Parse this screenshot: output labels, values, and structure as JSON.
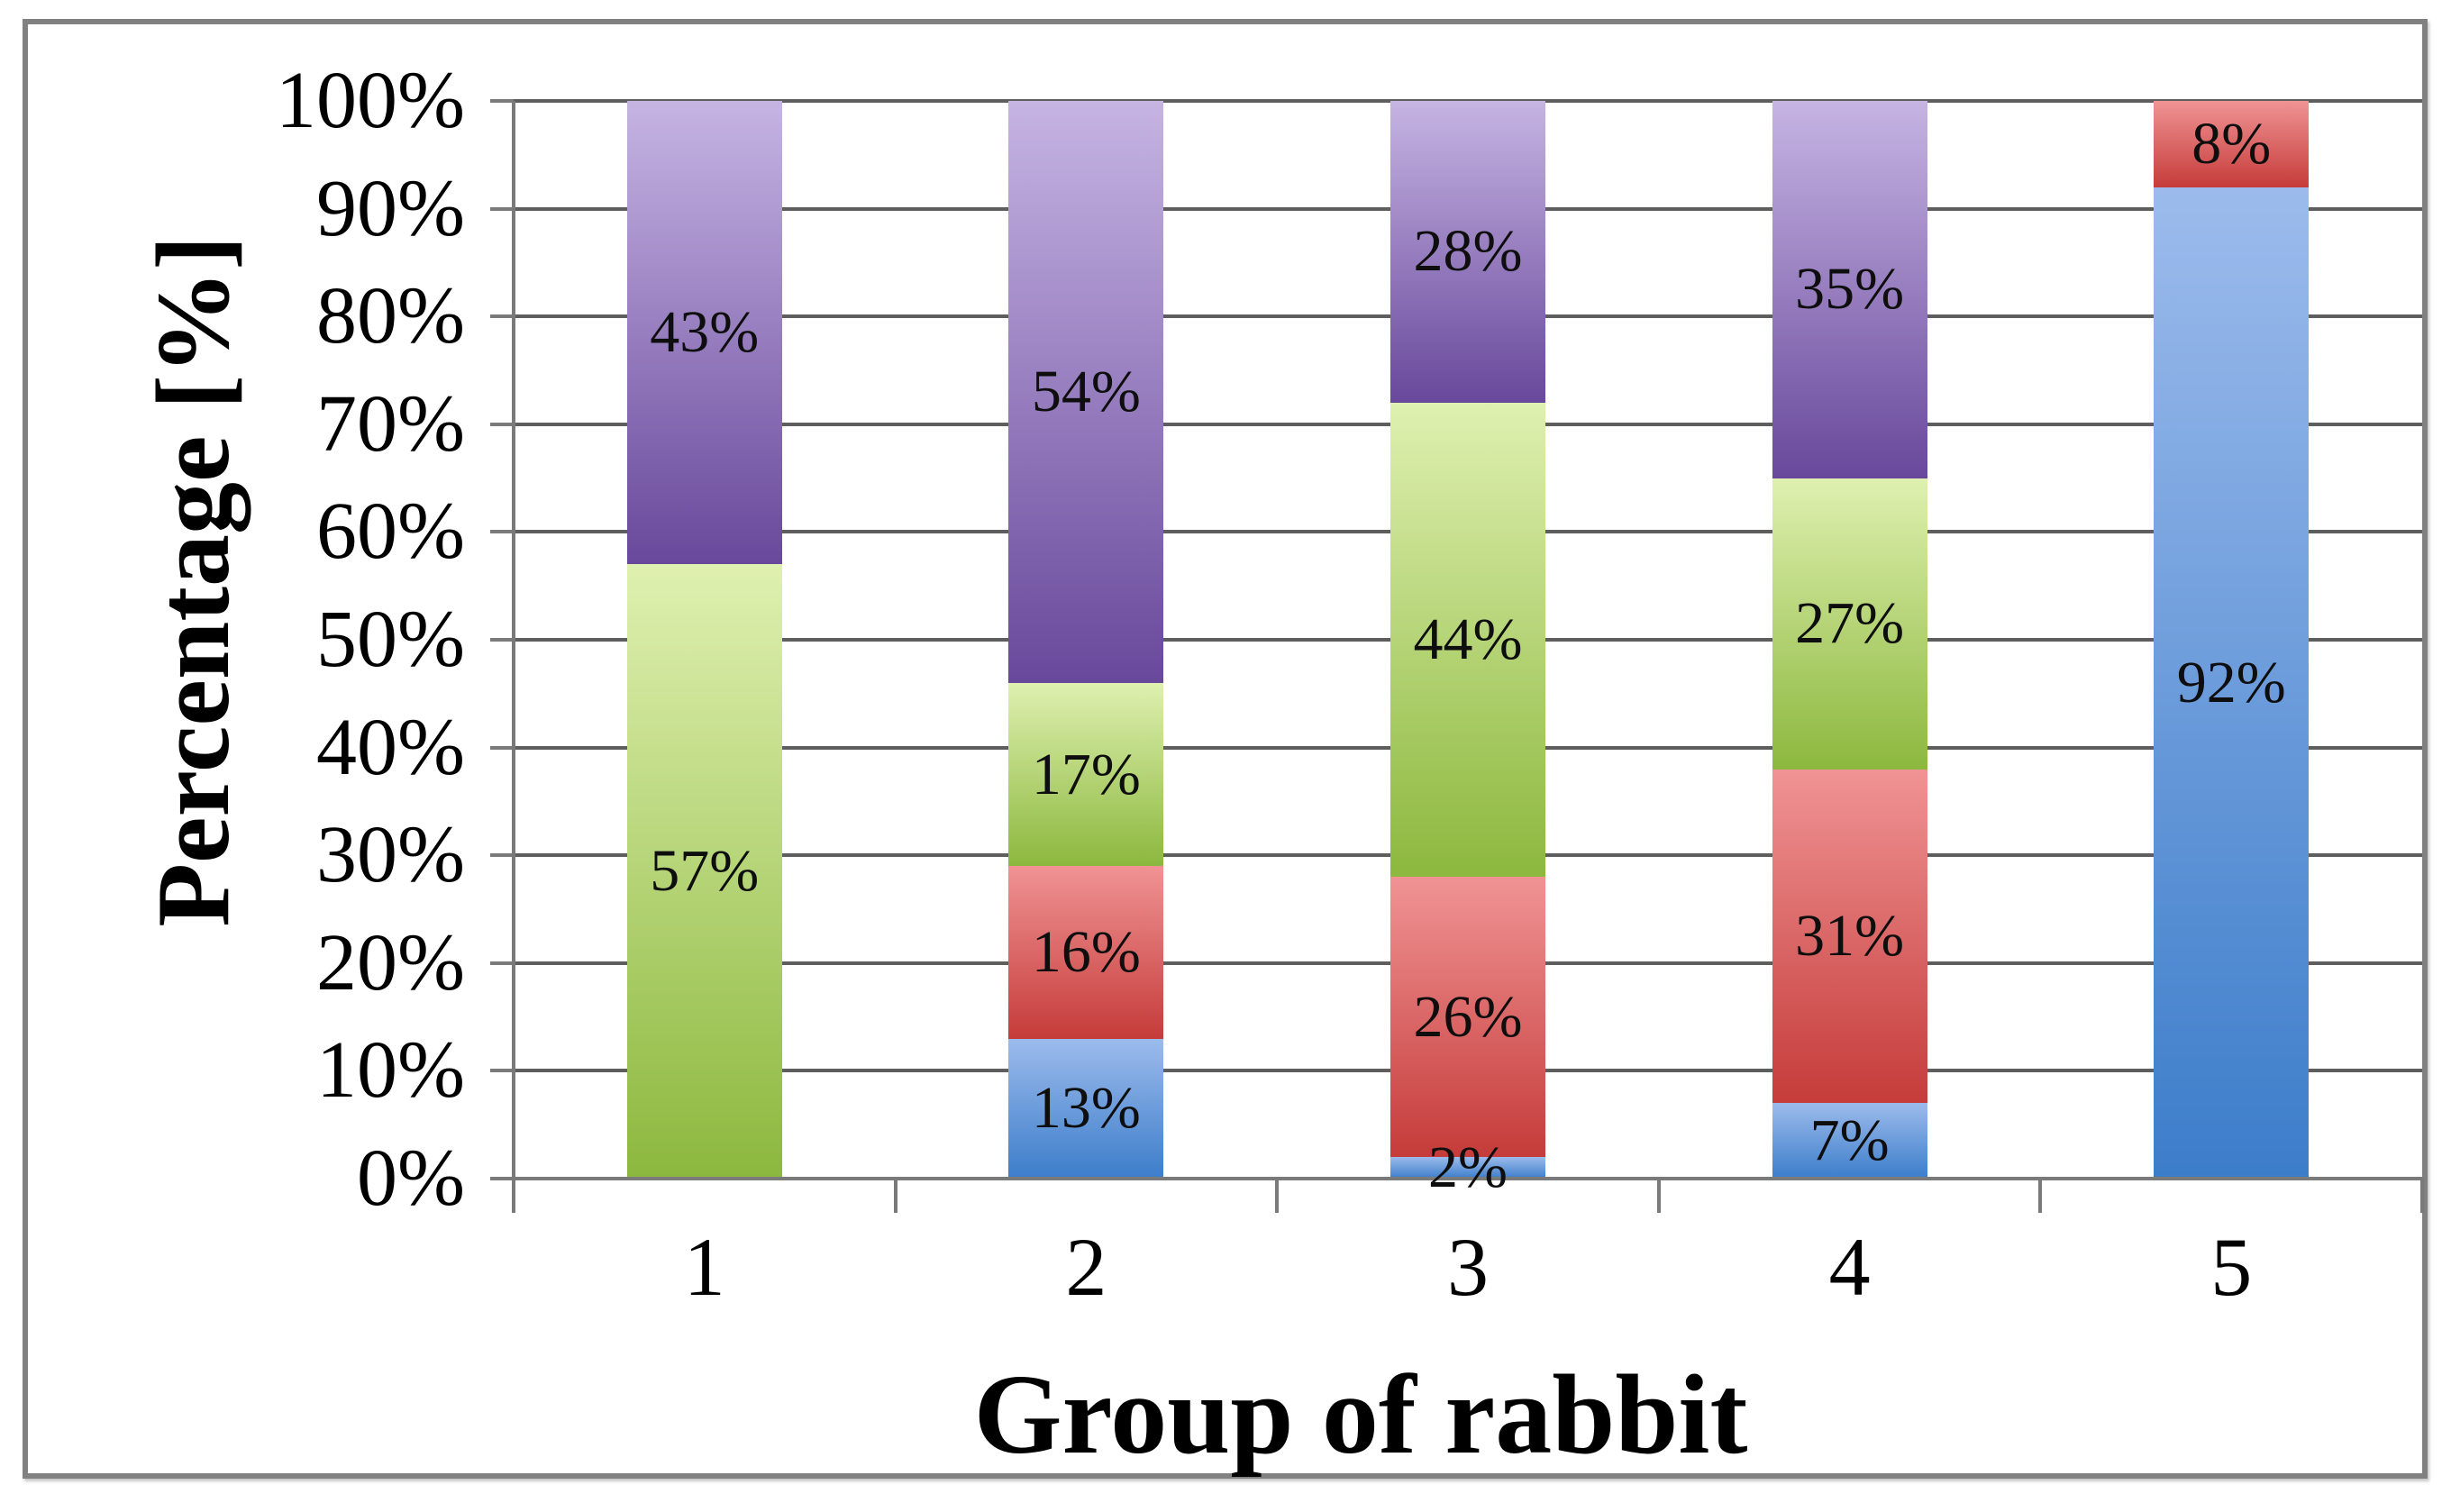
{
  "figure": {
    "background": "#ffffff",
    "frame_border_color": "#818181",
    "gridline_color": "#5e5e5e",
    "axis_color": "#7a7a7a",
    "text_color": "#000000"
  },
  "chart_data": {
    "type": "bar",
    "subtype": "stacked-100-percent",
    "orientation": "vertical",
    "title": "",
    "xlabel": "Group of rabbit",
    "ylabel": "Percentage [%]",
    "categories": [
      "1",
      "2",
      "3",
      "4",
      "5"
    ],
    "y_tick_labels": [
      "0%",
      "10%",
      "20%",
      "30%",
      "40%",
      "50%",
      "60%",
      "70%",
      "80%",
      "90%",
      "100%"
    ],
    "ylim": [
      0,
      100
    ],
    "grid": "horizontal",
    "legend": "none",
    "label_suffix": "%",
    "series": [
      {
        "name": "blue-series",
        "color_light": "#9cbbec",
        "color_dark": "#3c7dca",
        "values": [
          0,
          13,
          2,
          7,
          92
        ]
      },
      {
        "name": "red-series",
        "color_light": "#f09394",
        "color_dark": "#c53c3a",
        "values": [
          0,
          16,
          26,
          31,
          8
        ]
      },
      {
        "name": "green-series",
        "color_light": "#dff0b0",
        "color_dark": "#8cb83e",
        "values": [
          57,
          17,
          44,
          27,
          0
        ]
      },
      {
        "name": "purple-series",
        "color_light": "#c6b4e3",
        "color_dark": "#68489b",
        "values": [
          43,
          54,
          28,
          35,
          0
        ]
      }
    ]
  }
}
